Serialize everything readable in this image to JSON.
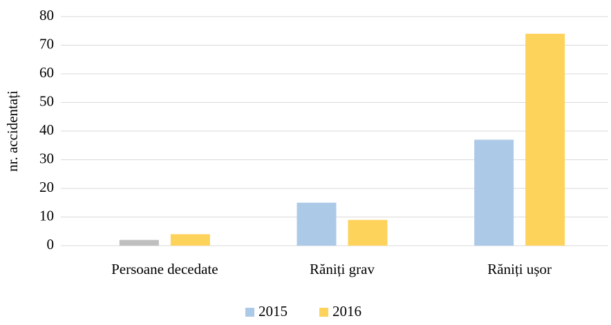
{
  "chart_data": {
    "type": "bar",
    "ylabel": "nr. accidentați",
    "categories": [
      "Persoane decedate",
      "Răniți grav",
      "Răniți ușor"
    ],
    "series": [
      {
        "name": "2015",
        "color": "#adc9e8",
        "colors": [
          "#bfbfbf",
          "#adc9e8",
          "#adc9e8"
        ],
        "values": [
          2,
          15,
          37
        ]
      },
      {
        "name": "2016",
        "color": "#fdd35c",
        "values": [
          4,
          9,
          74
        ]
      }
    ],
    "ylim": [
      0,
      80
    ],
    "yticks": [
      0,
      10,
      20,
      30,
      40,
      50,
      60,
      70,
      80
    ],
    "grid": true,
    "legend": "bottom"
  }
}
